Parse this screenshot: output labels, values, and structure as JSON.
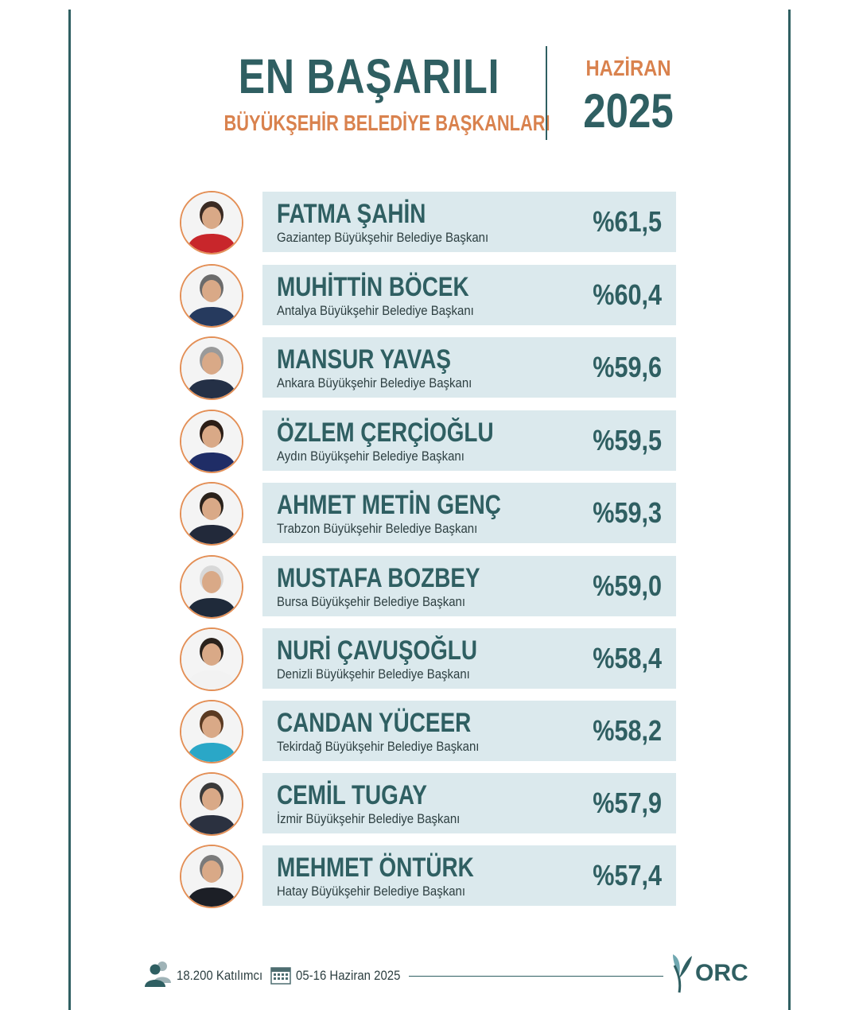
{
  "header": {
    "title": "EN BAŞARILI",
    "subtitle": "BÜYÜKŞEHİR BELEDİYE BAŞKANLARI",
    "month": "HAZİRAN",
    "year": "2025"
  },
  "colors": {
    "primary": "#2f5f62",
    "accent": "#d9824e",
    "row_background": "#dbe9ed"
  },
  "ranking": [
    {
      "name": "FATMA ŞAHİN",
      "office": "Gaziantep Büyükşehir Belediye Başkanı",
      "percent": "%61,5"
    },
    {
      "name": "MUHİTTİN BÖCEK",
      "office": "Antalya Büyükşehir Belediye Başkanı",
      "percent": "%60,4"
    },
    {
      "name": "MANSUR YAVAŞ",
      "office": "Ankara Büyükşehir Belediye Başkanı",
      "percent": "%59,6"
    },
    {
      "name": "ÖZLEM ÇERÇİOĞLU",
      "office": "Aydın Büyükşehir Belediye Başkanı",
      "percent": "%59,5"
    },
    {
      "name": "AHMET METİN GENÇ",
      "office": "Trabzon Büyükşehir Belediye Başkanı",
      "percent": "%59,3"
    },
    {
      "name": "MUSTAFA BOZBEY",
      "office": "Bursa Büyükşehir Belediye Başkanı",
      "percent": "%59,0"
    },
    {
      "name": "NURİ ÇAVUŞOĞLU",
      "office": "Denizli Büyükşehir Belediye Başkanı",
      "percent": "%58,4"
    },
    {
      "name": "CANDAN YÜCEER",
      "office": "Tekirdağ Büyükşehir Belediye Başkanı",
      "percent": "%58,2"
    },
    {
      "name": "CEMİL TUGAY",
      "office": "İzmir Büyükşehir Belediye Başkanı",
      "percent": "%57,9"
    },
    {
      "name": "MEHMET ÖNTÜRK",
      "office": "Hatay Büyükşehir Belediye Başkanı",
      "percent": "%57,4"
    }
  ],
  "footer": {
    "participants": "18.200 Katılımcı",
    "dates": "05-16 Haziran 2025",
    "logo": "ORC",
    "participants_icon": "people-icon",
    "calendar_icon": "calendar-icon"
  }
}
